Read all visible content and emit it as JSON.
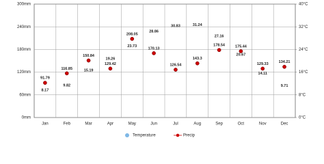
{
  "chart_data": {
    "type": "climate",
    "categories": [
      "Jan",
      "Feb",
      "Mar",
      "Apr",
      "May",
      "Jun",
      "Jul",
      "Aug",
      "Sep",
      "Oct",
      "Nov",
      "Dec"
    ],
    "series": [
      {
        "name": "Temperature",
        "color": "#7fb8e6",
        "axis": "y2",
        "values": [
          8.17,
          9.82,
          15.19,
          19.26,
          23.73,
          28.86,
          30.83,
          31.24,
          27.16,
          20.67,
          14.11,
          9.71
        ]
      },
      {
        "name": "Precip",
        "color": "#cc0000",
        "values": [
          91.79,
          116.85,
          150.84,
          129.42,
          208.05,
          170.13,
          126.54,
          143.3,
          178.54,
          175.44,
          129.33,
          134.21
        ]
      }
    ],
    "ylim": [
      0,
      300
    ],
    "yticks": [
      {
        "value": 0,
        "label": "0mm"
      },
      {
        "value": 60,
        "label": "60mm"
      },
      {
        "value": 120,
        "label": "120mm"
      },
      {
        "value": 180,
        "label": "180mm"
      },
      {
        "value": 240,
        "label": "240mm"
      },
      {
        "value": 300,
        "label": "300mm"
      }
    ],
    "y2lim": [
      0,
      40
    ],
    "y2ticks": [
      {
        "value": 0,
        "label": "0°C"
      },
      {
        "value": 8,
        "label": "8°C"
      },
      {
        "value": 16,
        "label": "16°C"
      },
      {
        "value": 24,
        "label": "24°C"
      },
      {
        "value": 32,
        "label": "32°C"
      },
      {
        "value": 40,
        "label": "40°C"
      }
    ],
    "grid": true
  }
}
